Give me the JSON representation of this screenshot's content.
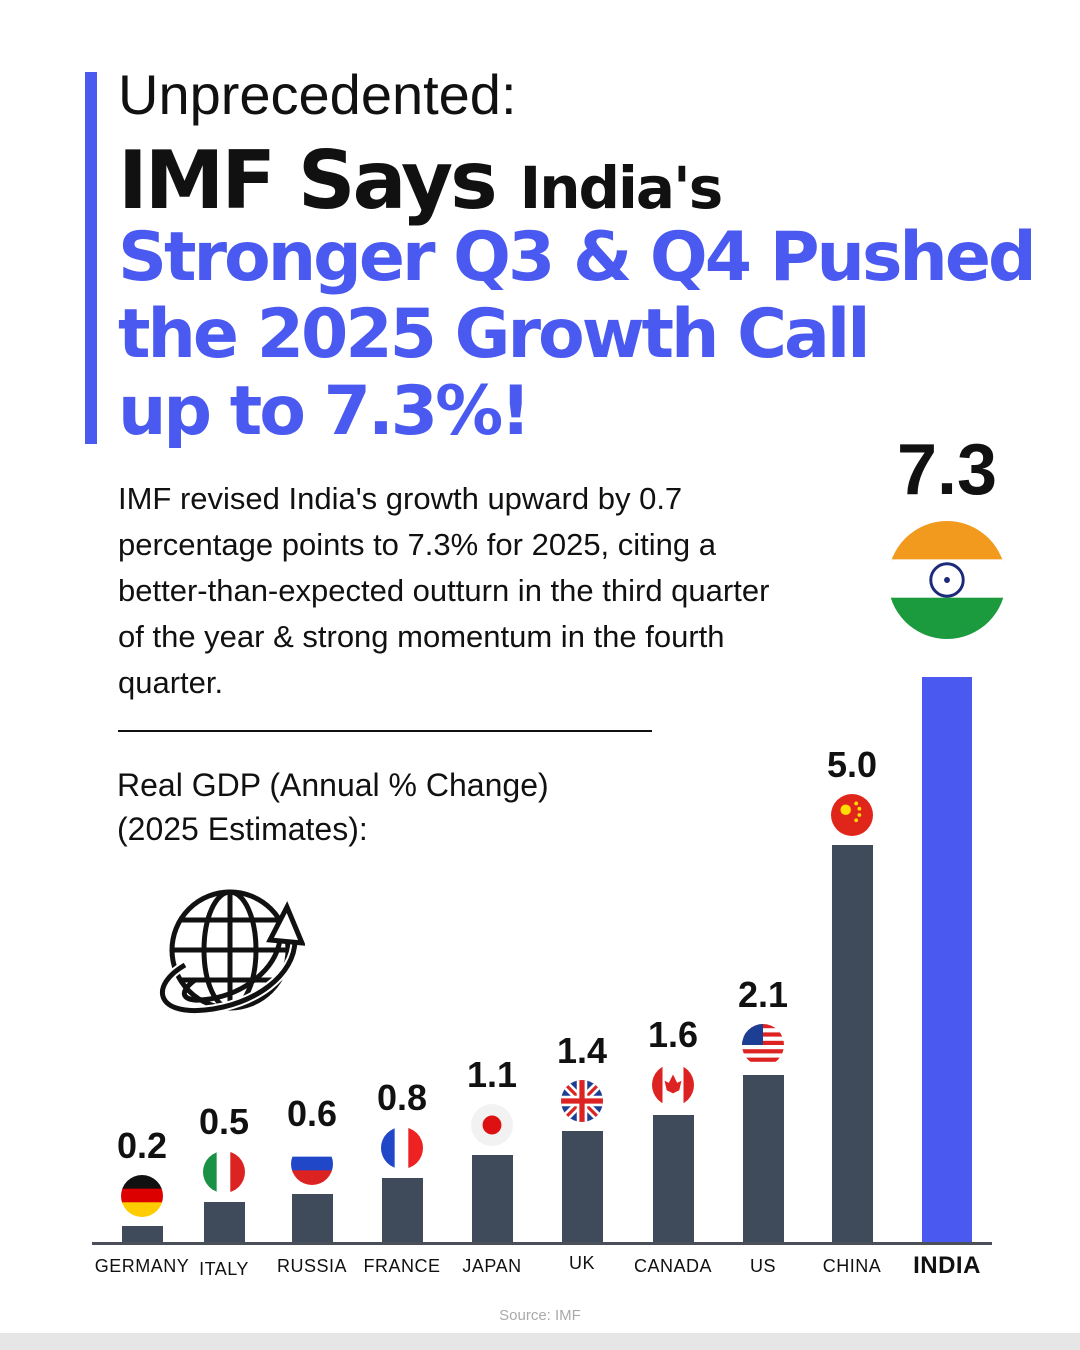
{
  "header": {
    "line1": "Unprecedented:",
    "line2_big": "IMF Says",
    "line2_small": "India's",
    "blue_lines": [
      "Stronger Q3 & Q4 Pushed",
      "the 2025 Growth Call",
      "up to 7.3%!"
    ]
  },
  "body_text": "IMF revised India's growth upward by 0.7 percentage points to 7.3% for 2025, citing a better-than-expected outturn in the third quarter of the year & strong momentum in the fourth quarter.",
  "colors": {
    "accent": "#4a5af0",
    "bar": "#3f4a5a",
    "highlight_bar": "#4a5af0"
  },
  "icons": {
    "decorative": "globe-with-arrow-icon"
  },
  "chart_data": {
    "type": "bar",
    "title": "Real GDP (Annual % Change) (2025 Estimates):",
    "title_lines": [
      "Real GDP (Annual % Change)",
      "(2025 Estimates):"
    ],
    "categories": [
      "GERMANY",
      "ITALY",
      "RUSSIA",
      "FRANCE",
      "JAPAN",
      "UK",
      "CANADA",
      "US",
      "CHINA",
      "INDIA"
    ],
    "values": [
      0.2,
      0.5,
      0.6,
      0.8,
      1.1,
      1.4,
      1.6,
      2.1,
      5.0,
      7.3
    ],
    "value_labels": [
      "0.2",
      "0.5",
      "0.6",
      "0.8",
      "1.1",
      "1.4",
      "1.6",
      "2.1",
      "5.0",
      "7.3"
    ],
    "highlight": "INDIA",
    "grid": false,
    "source": "Source: IMF"
  }
}
